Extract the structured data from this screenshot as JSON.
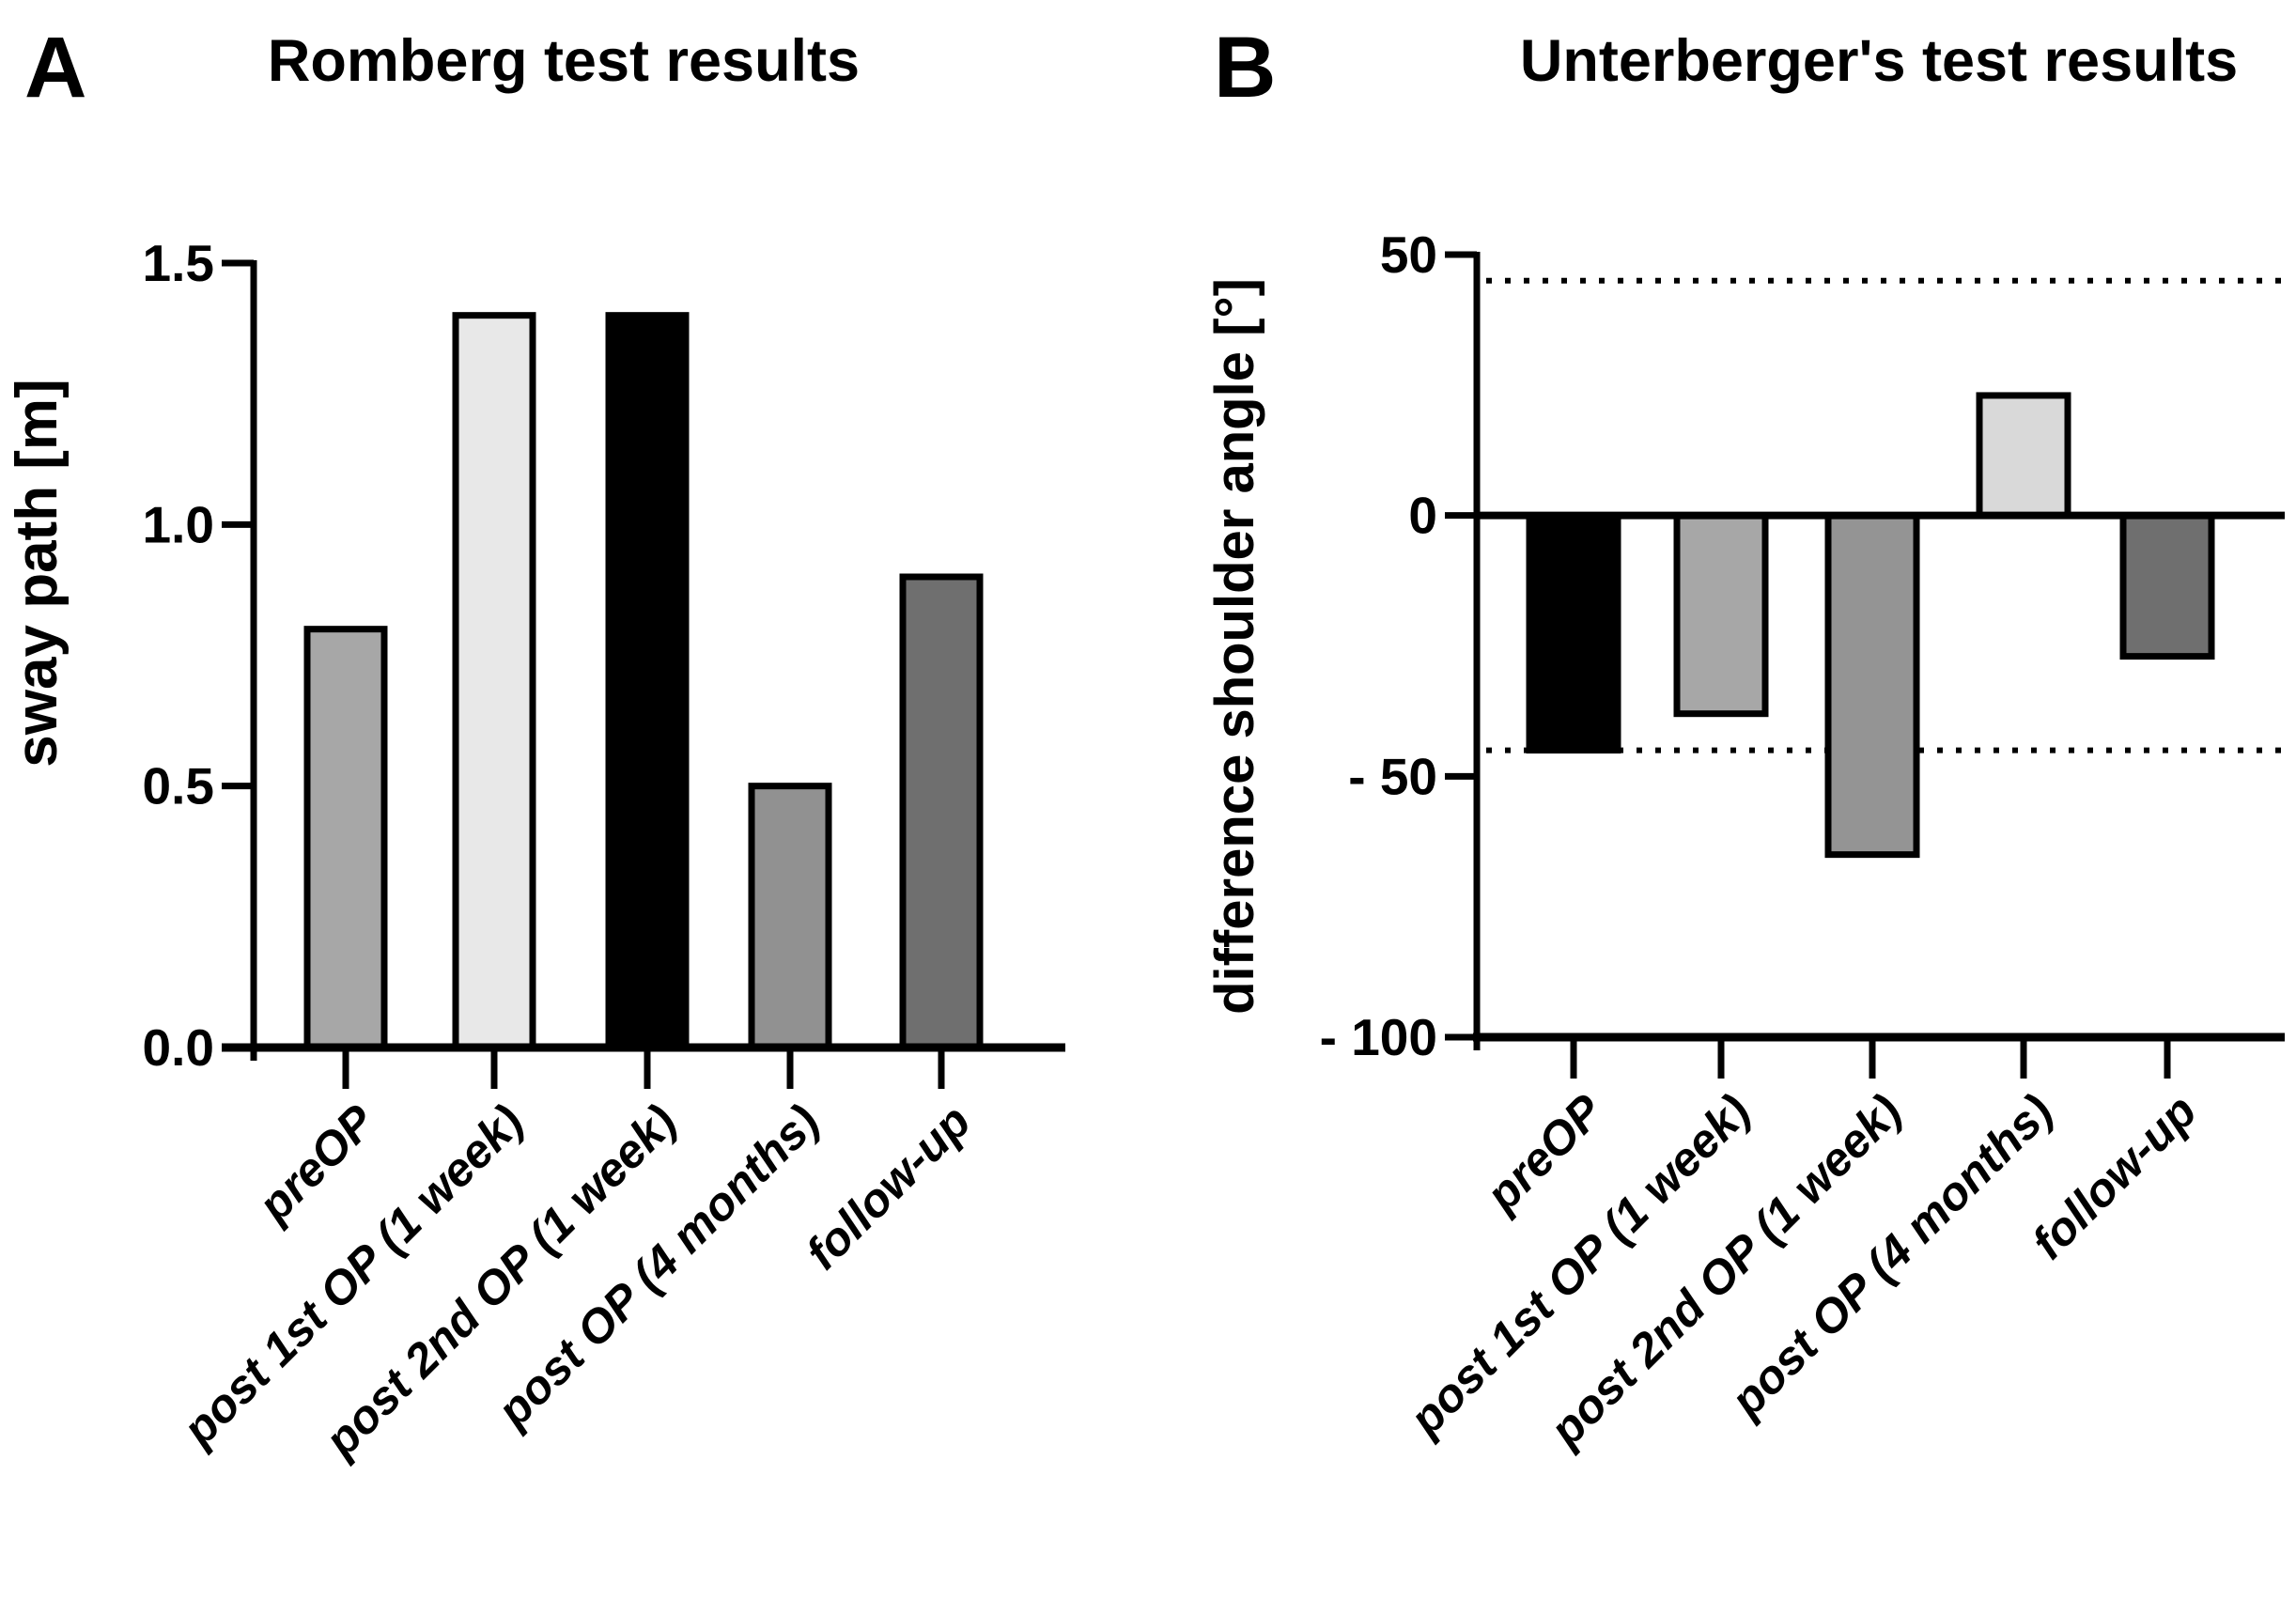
{
  "figure": {
    "background": "#ffffff",
    "axis_color": "#000000",
    "text_color": "#000000"
  },
  "panels": [
    {
      "letter": "A"
    },
    {
      "letter": "B"
    }
  ],
  "chart_data": [
    {
      "panel": "A",
      "type": "bar",
      "title": "Romberg test results",
      "xlabel": "",
      "ylabel": "sway path [m]",
      "ylim": [
        0,
        1.5
      ],
      "yticks": [
        {
          "value": 1.5,
          "label": "1.5"
        },
        {
          "value": 1.0,
          "label": "1.0"
        },
        {
          "value": 0.5,
          "label": "0.5"
        },
        {
          "value": 0.0,
          "label": "0.0"
        }
      ],
      "categories": [
        "preOP",
        "post 1st OP (1 week)",
        "post 2nd OP (1 week)",
        "post OP (4 months)",
        "follow-up"
      ],
      "values": [
        0.8,
        1.4,
        1.4,
        0.5,
        0.9
      ],
      "bar_colors": [
        "#a7a7a7",
        "#e8e8e8",
        "#000000",
        "#919191",
        "#6f6f6f"
      ],
      "bar_outline": "#000000",
      "grid": false,
      "legend": "none"
    },
    {
      "panel": "B",
      "type": "bar",
      "title": "Unterberger's test results",
      "xlabel": "",
      "ylabel": "difference shoulder angle [°]",
      "ylim": [
        -100,
        50
      ],
      "yticks": [
        {
          "value": 50,
          "label": "50"
        },
        {
          "value": 0,
          "label": "0"
        },
        {
          "value": -50,
          "label": "- 50"
        },
        {
          "value": -100,
          "label": "- 100"
        }
      ],
      "categories": [
        "preOP",
        "post 1st OP (1 week)",
        "post 2nd OP (1 week)",
        "post OP (4 months)",
        "follow-up"
      ],
      "values": [
        -45,
        -38,
        -65,
        23,
        -27
      ],
      "bar_colors": [
        "#000000",
        "#a7a7a7",
        "#949494",
        "#d9d9d9",
        "#6f6f6f"
      ],
      "bar_outline": "#000000",
      "reference_lines": {
        "style": "dotted",
        "values": [
          45,
          -45
        ]
      },
      "zero_line": true,
      "grid": false,
      "legend": "none"
    }
  ]
}
